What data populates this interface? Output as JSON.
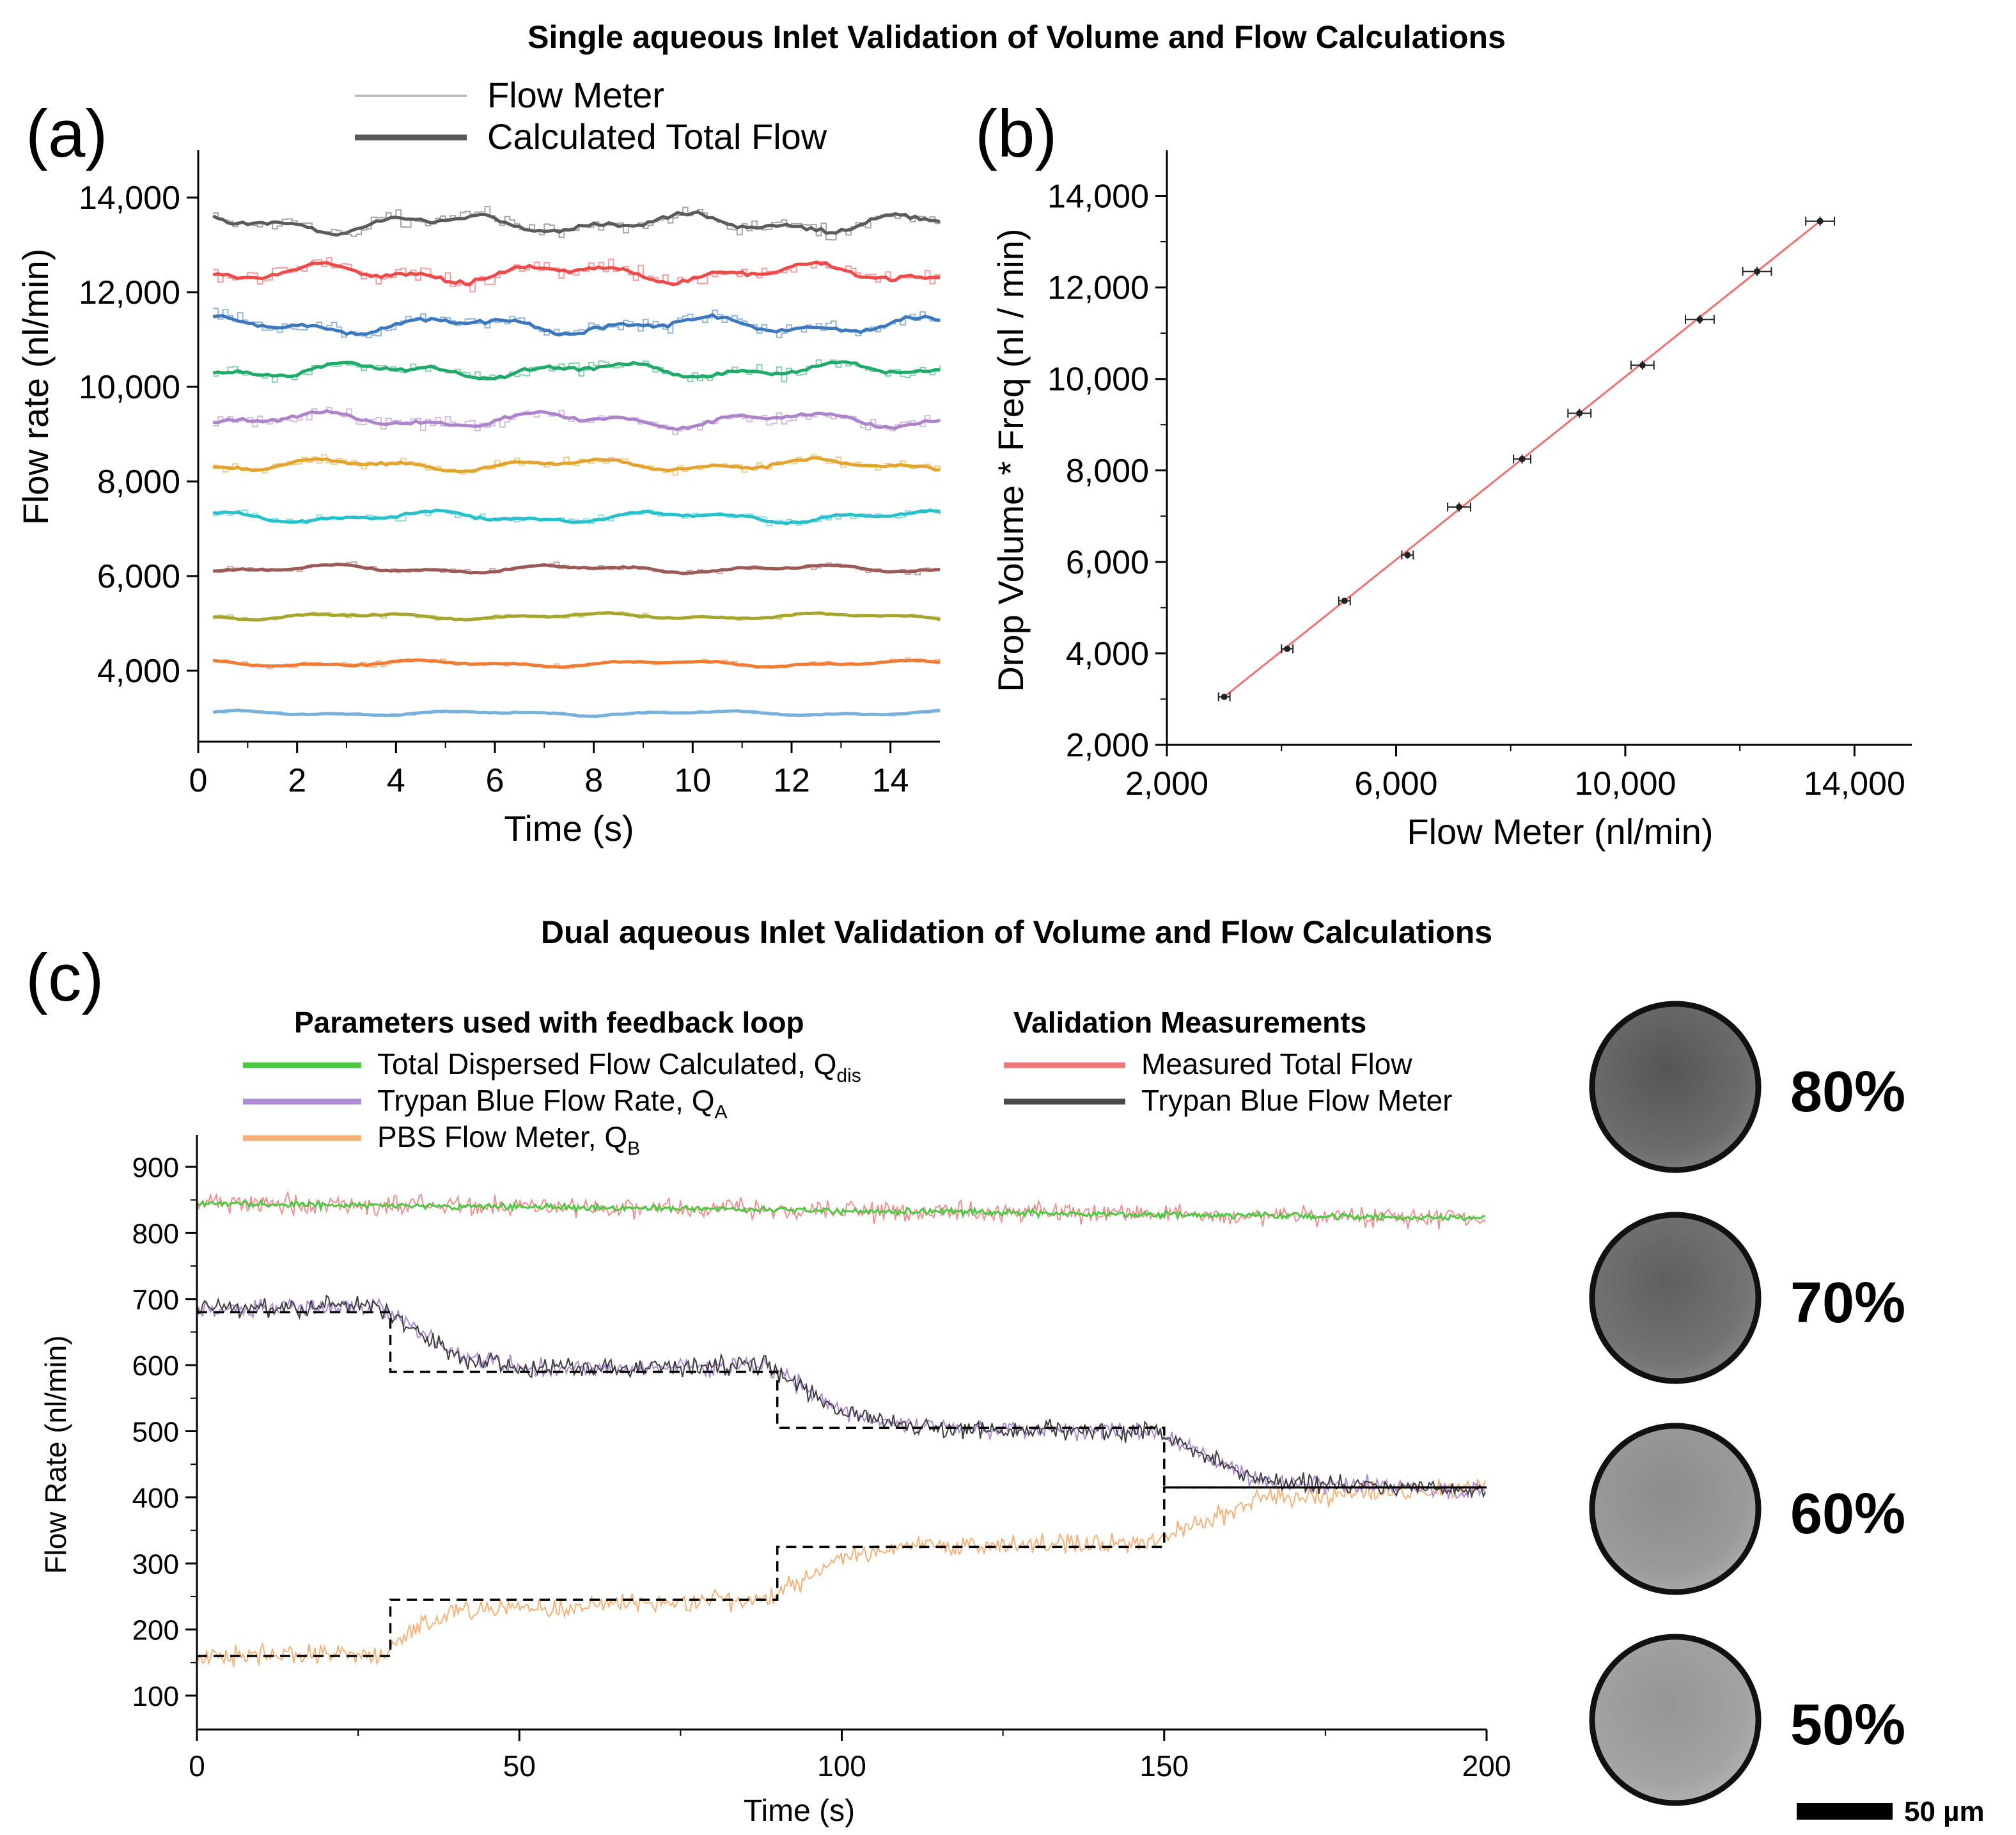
{
  "figure": {
    "title_top": "Single aqueous Inlet Validation of Volume and Flow Calculations",
    "title_bottom": "Dual aqueous Inlet Validation of Volume and Flow Calculations"
  },
  "colors": {
    "series_a": [
      "#78b0dc",
      "#ef7b35",
      "#a7a52c",
      "#9b5a56",
      "#26c1cb",
      "#e3a42e",
      "#ad84c9",
      "#20aa6a",
      "#3b78be",
      "#ee4a4a",
      "#5b5b5b"
    ],
    "meter_c": "#f08f8f",
    "calc_c": "#4dc843",
    "qa": "#ae8ad3",
    "qb": "#f6b178",
    "tbmeter": "#3d3d3d",
    "fit_b": "#f06f6f",
    "setpoint": "#000000"
  },
  "chart_data": [
    {
      "panel": "(a)",
      "type": "line",
      "xlabel": "Time (s)",
      "ylabel": "Flow rate (nl/min)",
      "xlim": [
        0,
        15
      ],
      "ylim": [
        2500,
        15000
      ],
      "xticks": [
        0,
        2,
        4,
        6,
        8,
        10,
        12,
        14
      ],
      "xtick_labels": [
        "0",
        "2",
        "4",
        "6",
        "8",
        "10",
        "12",
        "14"
      ],
      "yticks": [
        4000,
        6000,
        8000,
        10000,
        12000,
        14000
      ],
      "ytick_labels": [
        "4,000",
        "6,000",
        "8,000",
        "10,000",
        "12,000",
        "14,000"
      ],
      "legend": [
        "Flow Meter",
        "Calculated Total Flow"
      ],
      "series_means": [
        3100,
        4150,
        5150,
        6150,
        7250,
        8350,
        9300,
        10350,
        11300,
        12400,
        13450
      ],
      "series_amplitude": [
        60,
        80,
        80,
        100,
        150,
        150,
        200,
        200,
        220,
        250,
        250
      ],
      "sample_dt": 0.1
    },
    {
      "panel": "(b)",
      "type": "scatter",
      "xlabel": "Flow Meter (nl/min)",
      "ylabel": "Drop Volume * Freq (nl / min)",
      "xlim": [
        2000,
        15000
      ],
      "ylim": [
        2000,
        15000
      ],
      "xticks": [
        2000,
        6000,
        10000,
        14000
      ],
      "xtick_labels": [
        "2,000",
        "6,000",
        "10,000",
        "14,000"
      ],
      "yticks": [
        2000,
        4000,
        6000,
        8000,
        10000,
        12000,
        14000
      ],
      "ytick_labels": [
        "2,000",
        "4,000",
        "6,000",
        "8,000",
        "10,000",
        "12,000",
        "14,000"
      ],
      "x": [
        3000,
        4100,
        5100,
        6200,
        7100,
        8200,
        9200,
        10300,
        11300,
        12300,
        13400
      ],
      "y": [
        3050,
        4100,
        5150,
        6150,
        7200,
        8250,
        9250,
        10300,
        11300,
        12350,
        13450
      ],
      "xerr": [
        100,
        100,
        100,
        100,
        200,
        150,
        200,
        200,
        250,
        250,
        250
      ],
      "yerr": [
        50,
        50,
        50,
        80,
        100,
        100,
        100,
        100,
        100,
        100,
        100
      ],
      "fit": {
        "x": [
          3000,
          13400
        ],
        "y": [
          3050,
          13450
        ]
      }
    },
    {
      "panel": "(c)",
      "type": "line",
      "xlabel": "Time (s)",
      "ylabel": "Flow Rate (nl/min)",
      "xlim": [
        0,
        200
      ],
      "ylim": [
        50,
        950
      ],
      "xticks": [
        0,
        50,
        100,
        150,
        200
      ],
      "xtick_labels": [
        "0",
        "50",
        "100",
        "150",
        "200"
      ],
      "yticks": [
        100,
        200,
        300,
        400,
        500,
        600,
        700,
        800,
        900
      ],
      "ytick_labels": [
        "100",
        "200",
        "300",
        "400",
        "500",
        "600",
        "700",
        "800",
        "900"
      ],
      "legend_headers": [
        "Parameters used with feedback loop",
        "Validation Measurements"
      ],
      "legend": [
        {
          "label": "Total Dispersed Flow Calculated, Q",
          "sub": "dis"
        },
        {
          "label": "Trypan Blue Flow Rate, Q",
          "sub": "A"
        },
        {
          "label": "PBS Flow Meter, Q",
          "sub": "B"
        },
        {
          "label": "Measured Total Flow",
          "sub": ""
        },
        {
          "label": "Trypan Blue Flow Meter",
          "sub": ""
        }
      ],
      "setpoint_A": {
        "x": [
          0,
          30,
          30,
          90,
          90,
          150,
          150,
          200
        ],
        "y": [
          680,
          680,
          590,
          590,
          505,
          505,
          415,
          415
        ]
      },
      "setpoint_B": {
        "x": [
          0,
          30,
          30,
          90,
          90,
          150,
          150,
          200
        ],
        "y": [
          160,
          160,
          245,
          245,
          325,
          325,
          415,
          415
        ]
      },
      "total_flow": {
        "start": 845,
        "end": 822
      },
      "qa_anchors": {
        "t": [
          0,
          28,
          40,
          50,
          88,
          100,
          112,
          148,
          165,
          200
        ],
        "v": [
          685,
          690,
          615,
          595,
          600,
          530,
          505,
          500,
          425,
          410
        ]
      },
      "qb_anchors": {
        "t": [
          0,
          28,
          40,
          88,
          100,
          112,
          148,
          165,
          200
        ],
        "v": [
          160,
          165,
          230,
          245,
          310,
          330,
          330,
          400,
          415
        ]
      },
      "sample_dt": 0.3
    }
  ],
  "droplets": {
    "labels": [
      "80%",
      "70%",
      "60%",
      "50%"
    ],
    "darkness": [
      0.38,
      0.35,
      0.25,
      0.22
    ],
    "scale_bar": "50 µm"
  }
}
